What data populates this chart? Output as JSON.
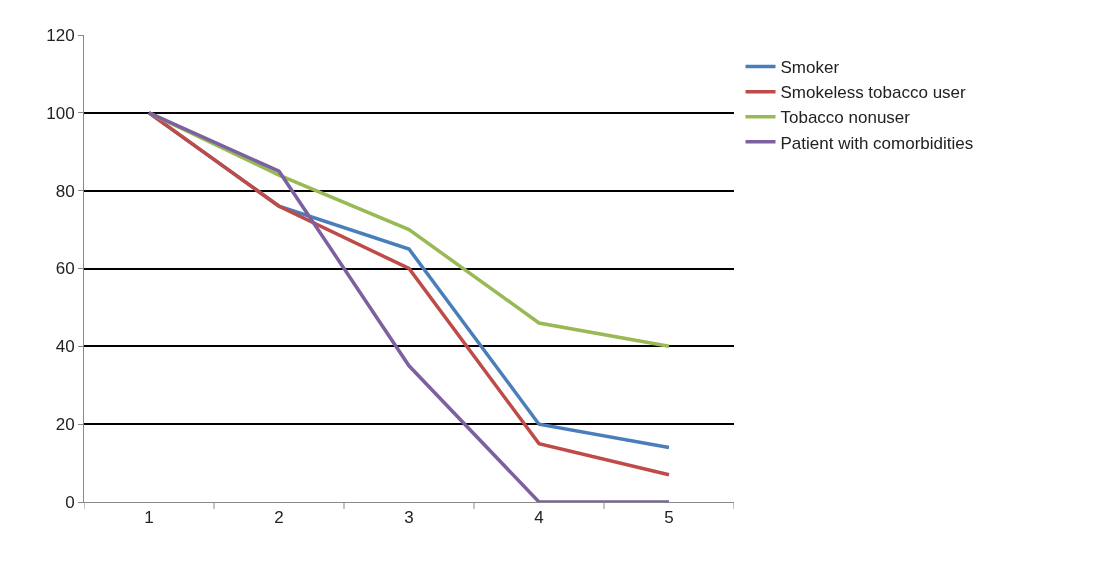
{
  "chart_data": {
    "type": "line",
    "categories": [
      "1",
      "2",
      "3",
      "4",
      "5"
    ],
    "series": [
      {
        "name": "Smoker",
        "color": "#4a7ebb",
        "values": [
          100,
          76,
          65,
          20,
          14
        ]
      },
      {
        "name": "Smokeless tobacco user",
        "color": "#be4b48",
        "values": [
          100,
          76,
          60,
          15,
          7
        ]
      },
      {
        "name": "Tobacco nonuser",
        "color": "#98b954",
        "values": [
          100,
          84,
          70,
          46,
          40
        ]
      },
      {
        "name": "Patient with comorbidities",
        "color": "#7d60a0",
        "values": [
          100,
          85,
          35,
          0,
          0
        ]
      }
    ],
    "ylim": [
      0,
      120
    ],
    "yticks": [
      0,
      20,
      40,
      60,
      80,
      100,
      120
    ],
    "grid": "y",
    "legend": "right",
    "marker": "none",
    "line_style": "solid"
  }
}
